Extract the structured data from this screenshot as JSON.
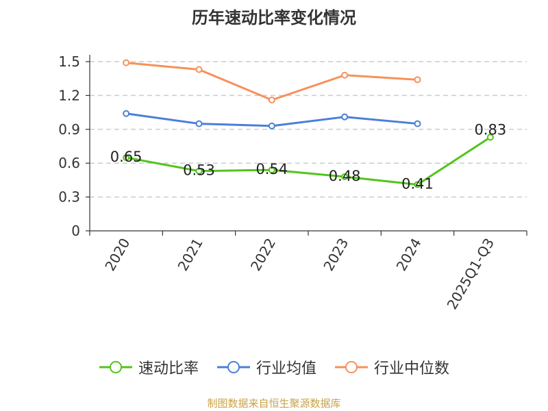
{
  "chart_data": {
    "type": "line",
    "title": "历年速动比率变化情况",
    "categories": [
      "2020",
      "2021",
      "2022",
      "2023",
      "2024",
      "2025Q1-Q3"
    ],
    "yticks": [
      "0",
      "0.3",
      "0.6",
      "0.9",
      "1.2",
      "1.5"
    ],
    "ylim": [
      0,
      1.5
    ],
    "grid": true,
    "legend_position": "bottom",
    "series": [
      {
        "name": "速动比率",
        "color": "#52c41a",
        "values": [
          0.65,
          0.53,
          0.54,
          0.48,
          0.41,
          0.83
        ],
        "labels": [
          "0.65",
          "0.53",
          "0.54",
          "0.48",
          "0.41",
          "0.83"
        ]
      },
      {
        "name": "行业均值",
        "color": "#4a7fd8",
        "values": [
          1.04,
          0.95,
          0.93,
          1.01,
          0.95,
          null
        ]
      },
      {
        "name": "行业中位数",
        "color": "#f7905a",
        "values": [
          1.49,
          1.43,
          1.16,
          1.38,
          1.34,
          null
        ]
      }
    ],
    "source": "制图数据来自恒生聚源数据库"
  }
}
